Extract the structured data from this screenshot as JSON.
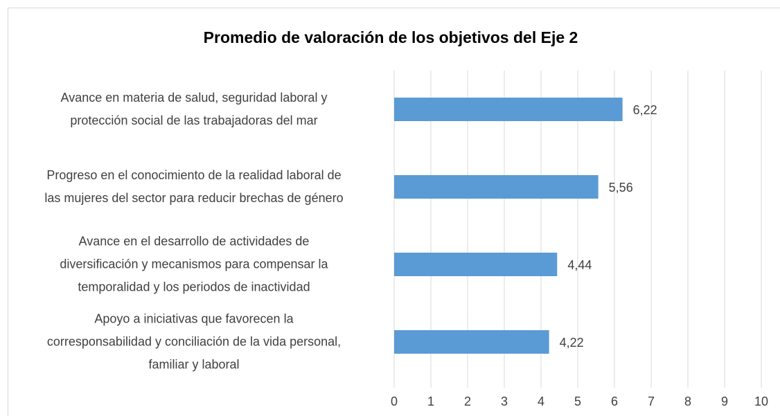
{
  "chart_data": {
    "type": "bar",
    "orientation": "horizontal",
    "title": "Promedio de valoración de los objetivos del Eje 2",
    "categories": [
      "Avance en materia de salud, seguridad laboral y\nprotección social de las trabajadoras del mar",
      "Progreso en el conocimiento de la realidad laboral de\nlas mujeres del sector para reducir brechas de género",
      "Avance en el desarrollo de actividades de\ndiversificación y mecanismos para compensar la\ntemporalidad y los periodos de inactividad",
      "Apoyo a iniciativas que favorecen la\ncorresponsabilidad y conciliación de la vida personal,\nfamiliar y laboral"
    ],
    "values": [
      6.22,
      5.56,
      4.44,
      4.22
    ],
    "value_labels": [
      "6,22",
      "5,56",
      "4,44",
      "4,22"
    ],
    "color": "#5b9bd5",
    "xlim": [
      0,
      10
    ],
    "xticks": [
      0,
      1,
      2,
      3,
      4,
      5,
      6,
      7,
      8,
      9,
      10
    ],
    "grid": true
  }
}
